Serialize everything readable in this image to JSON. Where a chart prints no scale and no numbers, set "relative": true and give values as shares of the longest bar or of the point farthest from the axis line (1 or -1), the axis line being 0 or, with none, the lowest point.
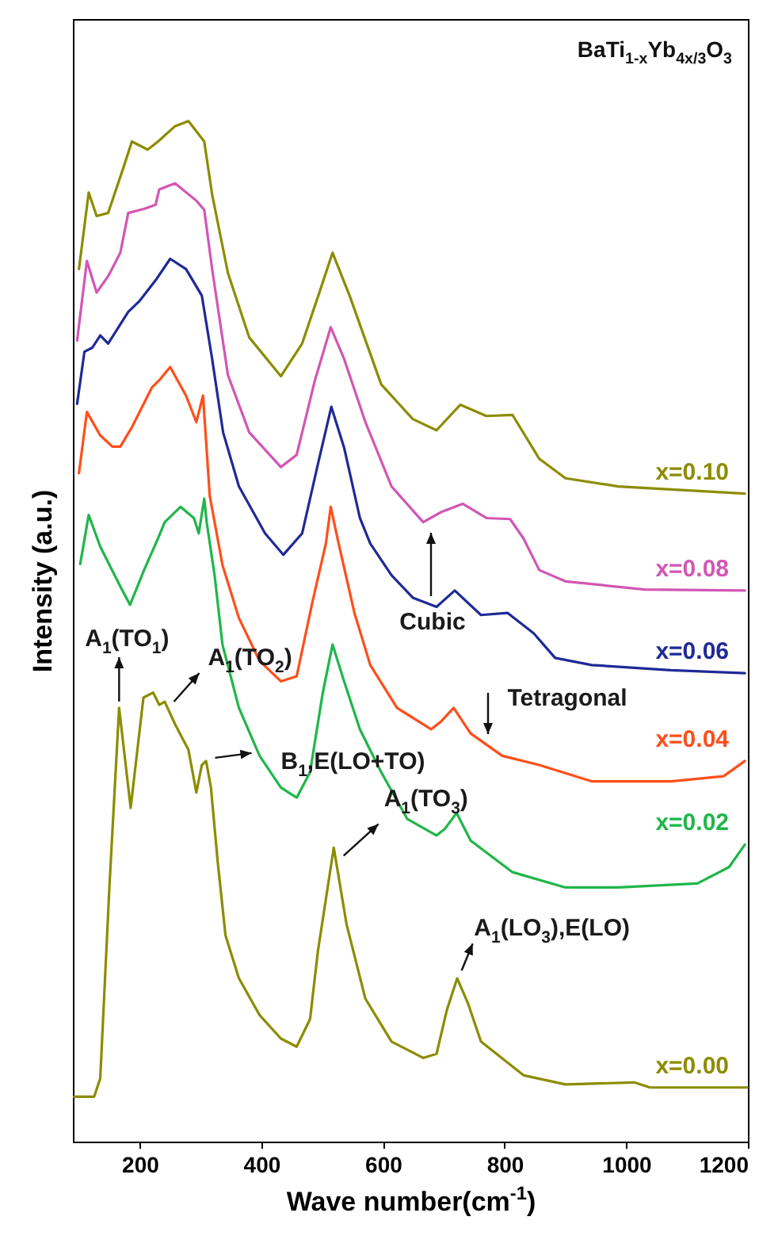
{
  "chart_data": {
    "type": "line",
    "relative": true,
    "title": "BaTi$_{1-x}$Yb$_{4x/3}$O$_{3}$",
    "xlabel": "Wave number(cm$^{-1}$)",
    "ylabel": "Intensity (a.u.)",
    "xlim": [
      90,
      1200
    ],
    "xticks": [
      200,
      400,
      600,
      800,
      1000,
      1200
    ],
    "series": [
      {
        "name": "x=0.10",
        "color": "#8c8c00",
        "x": [
          100,
          116,
          129,
          148,
          174,
          187,
          213,
          230,
          258,
          280,
          306,
          319,
          345,
          380,
          432,
          467,
          497,
          517,
          545,
          597,
          649,
          688,
          727,
          770,
          813,
          857,
          900,
          987,
          1195
        ],
        "values": [
          0.855,
          0.93,
          0.907,
          0.91,
          0.956,
          0.98,
          0.972,
          0.98,
          0.995,
          1.0,
          0.98,
          0.928,
          0.851,
          0.788,
          0.75,
          0.782,
          0.835,
          0.871,
          0.829,
          0.742,
          0.708,
          0.697,
          0.722,
          0.711,
          0.712,
          0.669,
          0.65,
          0.642,
          0.635
        ]
      },
      {
        "name": "x=0.08",
        "color": "#d256b4",
        "x": [
          97,
          113,
          129,
          148,
          168,
          181,
          207,
          226,
          232,
          258,
          293,
          306,
          319,
          345,
          380,
          432,
          458,
          488,
          514,
          536,
          571,
          614,
          666,
          696,
          731,
          770,
          809,
          831,
          857,
          900,
          1030,
          1195
        ],
        "values": [
          0.785,
          0.863,
          0.832,
          0.848,
          0.871,
          0.91,
          0.914,
          0.918,
          0.933,
          0.939,
          0.922,
          0.913,
          0.855,
          0.751,
          0.695,
          0.661,
          0.673,
          0.746,
          0.798,
          0.767,
          0.705,
          0.642,
          0.607,
          0.617,
          0.625,
          0.611,
          0.61,
          0.591,
          0.56,
          0.549,
          0.541,
          0.54
        ]
      },
      {
        "name": "x=0.06",
        "color": "#1f2a96",
        "x": [
          97,
          109,
          122,
          135,
          148,
          181,
          200,
          226,
          250,
          276,
          302,
          319,
          337,
          363,
          406,
          436,
          467,
          493,
          515,
          536,
          562,
          579,
          614,
          649,
          688,
          718,
          761,
          805,
          848,
          883,
          943,
          1073,
          1195
        ],
        "values": [
          0.723,
          0.774,
          0.778,
          0.79,
          0.782,
          0.813,
          0.824,
          0.844,
          0.865,
          0.855,
          0.829,
          0.767,
          0.695,
          0.642,
          0.596,
          0.575,
          0.596,
          0.664,
          0.72,
          0.68,
          0.611,
          0.586,
          0.555,
          0.533,
          0.524,
          0.54,
          0.516,
          0.518,
          0.498,
          0.474,
          0.467,
          0.462,
          0.459
        ]
      },
      {
        "name": "x=0.04",
        "color": "#ff4e1a",
        "x": [
          100,
          113,
          135,
          155,
          168,
          187,
          220,
          232,
          250,
          276,
          293,
          304,
          315,
          328,
          336,
          363,
          397,
          432,
          458,
          484,
          506,
          514,
          527,
          553,
          579,
          623,
          679,
          696,
          716,
          744,
          796,
          857,
          943,
          1073,
          1160,
          1195
        ],
        "values": [
          0.655,
          0.715,
          0.692,
          0.681,
          0.681,
          0.7,
          0.739,
          0.746,
          0.759,
          0.731,
          0.705,
          0.731,
          0.633,
          0.591,
          0.565,
          0.513,
          0.471,
          0.451,
          0.456,
          0.529,
          0.586,
          0.622,
          0.586,
          0.518,
          0.467,
          0.425,
          0.404,
          0.412,
          0.425,
          0.4,
          0.378,
          0.369,
          0.353,
          0.353,
          0.358,
          0.373
        ]
      },
      {
        "name": "x=0.02",
        "color": "#1fb64a",
        "x": [
          102,
          116,
          135,
          168,
          184,
          207,
          230,
          241,
          267,
          289,
          297,
          306,
          310,
          323,
          336,
          363,
          397,
          432,
          458,
          480,
          501,
          517,
          536,
          562,
          597,
          640,
          688,
          701,
          721,
          744,
          813,
          900,
          987,
          1117,
          1169,
          1195
        ],
        "values": [
          0.566,
          0.614,
          0.583,
          0.544,
          0.526,
          0.56,
          0.591,
          0.607,
          0.622,
          0.611,
          0.596,
          0.63,
          0.607,
          0.555,
          0.487,
          0.425,
          0.378,
          0.347,
          0.337,
          0.362,
          0.44,
          0.487,
          0.451,
          0.404,
          0.362,
          0.316,
          0.3,
          0.306,
          0.322,
          0.295,
          0.264,
          0.249,
          0.249,
          0.253,
          0.269,
          0.291
        ]
      },
      {
        "name": "x=0.00",
        "color": "#8c8c00",
        "x": [
          92,
          125,
          135,
          150,
          166,
          185,
          206,
          222,
          232,
          241,
          258,
          280,
          293,
          302,
          309,
          317,
          328,
          341,
          363,
          397,
          432,
          458,
          480,
          493,
          501,
          519,
          540,
          571,
          614,
          666,
          688,
          705,
          722,
          740,
          761,
          831,
          900,
          1013,
          1039,
          1199
        ],
        "values": [
          0.044,
          0.044,
          0.062,
          0.249,
          0.425,
          0.327,
          0.435,
          0.44,
          0.428,
          0.431,
          0.409,
          0.384,
          0.342,
          0.369,
          0.373,
          0.347,
          0.275,
          0.202,
          0.16,
          0.124,
          0.101,
          0.093,
          0.12,
          0.187,
          0.218,
          0.288,
          0.213,
          0.14,
          0.098,
          0.082,
          0.086,
          0.129,
          0.16,
          0.135,
          0.098,
          0.065,
          0.056,
          0.058,
          0.053,
          0.053
        ]
      }
    ],
    "annotations": [
      {
        "text": "A$_{1}$(TO$_{1}$)",
        "x": 166,
        "y": 0.425
      },
      {
        "text": "A$_{1}$(TO$_{2}$)",
        "x": 251,
        "y": 0.428
      },
      {
        "text": "B$_{1}$,E(LO+TO)",
        "x": 316,
        "y": 0.373
      },
      {
        "text": "A$_{1}$(TO$_{3}$)",
        "x": 530,
        "y": 0.277
      },
      {
        "text": "A$_{1}$(LO$_{3}$),E(LO)",
        "x": 724,
        "y": 0.163
      },
      "Cubic",
      "Tetragonal"
    ]
  }
}
